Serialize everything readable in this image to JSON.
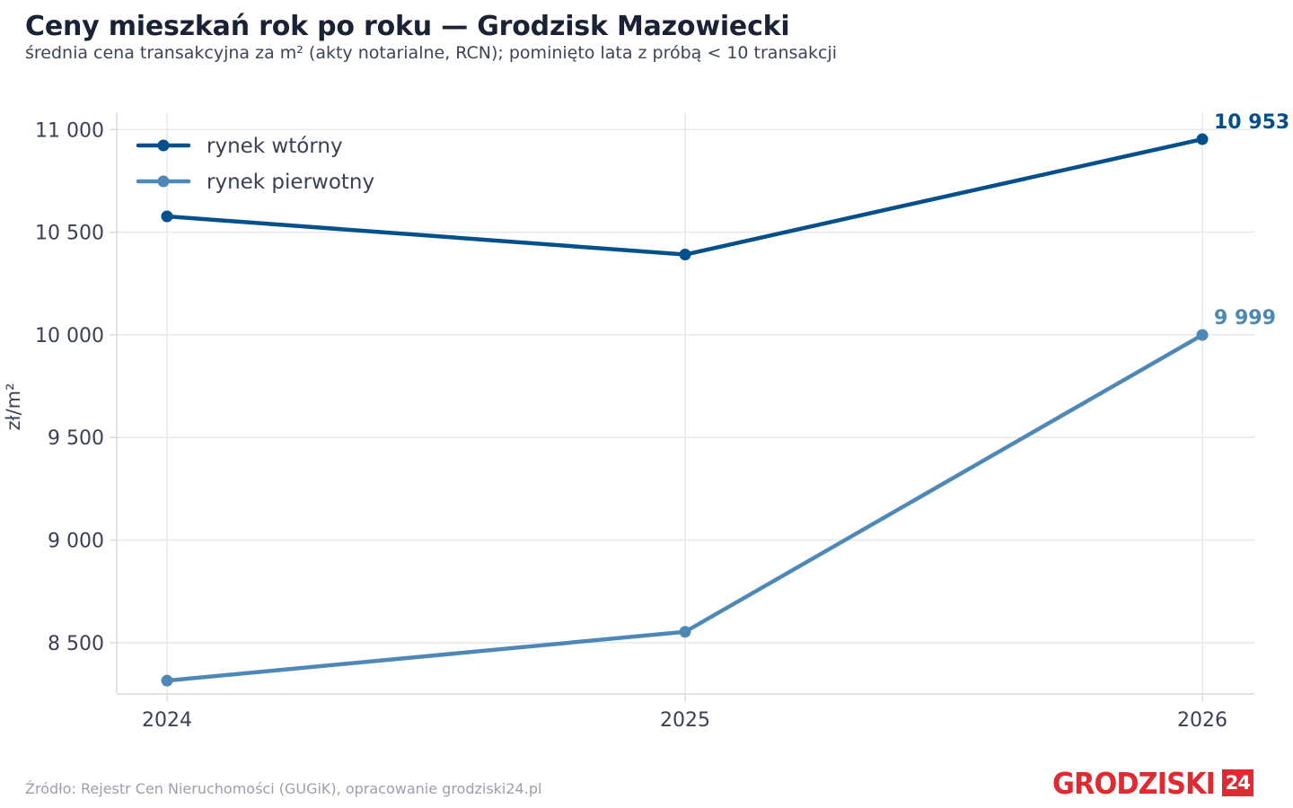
{
  "header": {
    "title": "Ceny mieszkań rok po roku — Grodzisk Mazowiecki",
    "subtitle": "średnia cena transakcyjna za m² (akty notarialne, RCN); pominięto lata z próbą < 10 transakcji"
  },
  "footer": {
    "source": "Źródło: Rejestr Cen Nieruchomości (GUGiK), opracowanie grodziski24.pl",
    "logo_text": "GRODZISKI",
    "logo_badge": "24"
  },
  "chart_data": {
    "type": "line",
    "title": "Ceny mieszkań rok po roku — Grodzisk Mazowiecki",
    "subtitle": "średnia cena transakcyjna za m² (akty notarialne, RCN); pominięto lata z próbą < 10 transakcji",
    "xlabel": "",
    "ylabel": "zł/m²",
    "x": [
      "2024",
      "2025",
      "2026"
    ],
    "ylim": [
      8250,
      11080
    ],
    "yticks": [
      8500,
      9000,
      9500,
      10000,
      10500,
      11000
    ],
    "ytick_labels": [
      "8 500",
      "9 000",
      "9 500",
      "10 000",
      "10 500",
      "11 000"
    ],
    "grid": true,
    "legend": "top-left",
    "series": [
      {
        "name": "rynek wtórny",
        "color": "#03508a",
        "values": [
          10577,
          10391,
          10953
        ],
        "end_label": "10 953"
      },
      {
        "name": "rynek pierwotny",
        "color": "#4e88b7",
        "values": [
          8315,
          8553,
          9999
        ],
        "end_label": "9 999"
      }
    ]
  }
}
